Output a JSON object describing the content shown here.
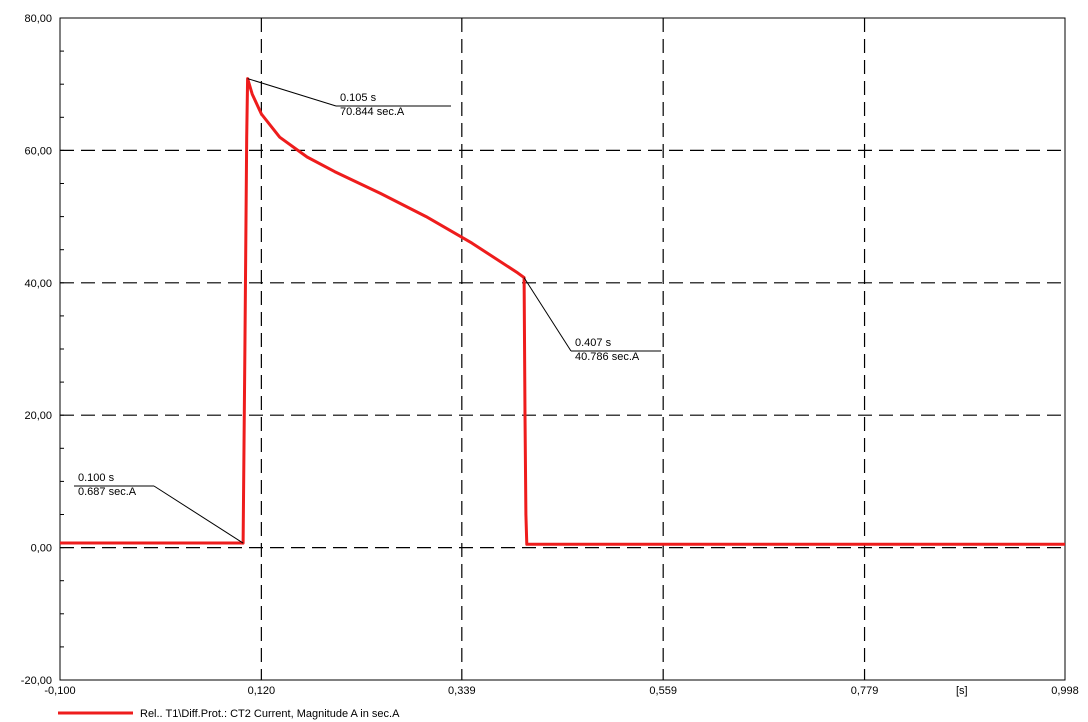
{
  "chart_data": {
    "type": "line",
    "title": "",
    "xlabel": "",
    "ylabel": "",
    "x_unit_label": "[s]",
    "xlim": [
      -0.1,
      0.998
    ],
    "ylim": [
      -20,
      80
    ],
    "x_ticks": [
      {
        "value": -0.1,
        "label": "-0,100"
      },
      {
        "value": 0.12,
        "label": "0,120"
      },
      {
        "value": 0.339,
        "label": "0,339"
      },
      {
        "value": 0.559,
        "label": "0,559"
      },
      {
        "value": 0.779,
        "label": "0,779"
      },
      {
        "value": 0.998,
        "label": "0,998"
      }
    ],
    "y_ticks": [
      {
        "value": -20,
        "label": "-20,00"
      },
      {
        "value": 0,
        "label": "0,00"
      },
      {
        "value": 20,
        "label": "20,00"
      },
      {
        "value": 40,
        "label": "40,00"
      },
      {
        "value": 60,
        "label": "60,00"
      },
      {
        "value": 80,
        "label": "80,00"
      }
    ],
    "grid": true,
    "grid_style": "dashed",
    "legend_position": "bottom-left",
    "series": [
      {
        "name": "Rel.. T1\\Diff.Prot.: CT2 Current, Magnitude A in sec.A",
        "color": "#ee1c1c",
        "x": [
          -0.1,
          0.0,
          0.098,
          0.1,
          0.102,
          0.104,
          0.105,
          0.11,
          0.12,
          0.14,
          0.17,
          0.2,
          0.25,
          0.3,
          0.35,
          0.4,
          0.407,
          0.408,
          0.409,
          0.41,
          0.411,
          0.5,
          0.6,
          0.8,
          0.998
        ],
        "y": [
          0.7,
          0.7,
          0.7,
          0.687,
          30,
          62,
          70.844,
          68.5,
          65.5,
          62,
          59,
          56.8,
          53.5,
          50,
          46,
          41.5,
          40.786,
          20,
          5,
          0.5,
          0.5,
          0.5,
          0.5,
          0.5,
          0.5
        ]
      }
    ],
    "annotations": [
      {
        "point_x": 0.1,
        "point_y": 0.687,
        "line1": "0.100 s",
        "line2": "0.687 sec.A"
      },
      {
        "point_x": 0.105,
        "point_y": 70.844,
        "line1": "0.105 s",
        "line2": "70.844 sec.A"
      },
      {
        "point_x": 0.407,
        "point_y": 40.786,
        "line1": "0.407 s",
        "line2": "40.786 sec.A"
      }
    ]
  }
}
